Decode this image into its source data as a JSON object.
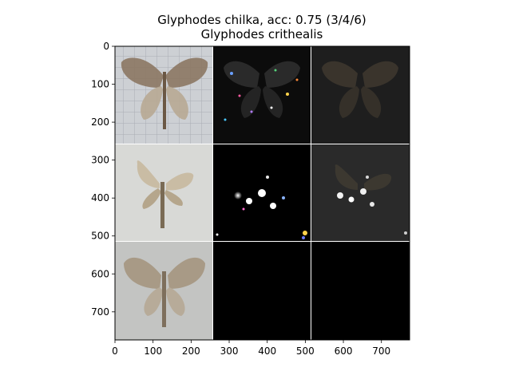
{
  "chart_data": {
    "type": "image-grid",
    "title": "Glyphodes chilka, acc: 0.75 (3/4/6)",
    "subtitle": "Glyphodes crithealis",
    "xlim": [
      0,
      774
    ],
    "ylim": [
      774,
      0
    ],
    "x_ticks": [
      0,
      100,
      200,
      300,
      400,
      500,
      600,
      700
    ],
    "y_ticks": [
      0,
      100,
      200,
      300,
      400,
      500,
      600,
      700
    ],
    "tile_size": 256,
    "grid": {
      "rows": 3,
      "cols": 3
    },
    "tiles": [
      {
        "row": 0,
        "col": 0,
        "content": "moth photo on grid paper"
      },
      {
        "row": 0,
        "col": 1,
        "content": "attribution map, dark with colored speckles"
      },
      {
        "row": 0,
        "col": 2,
        "content": "masked moth, dark"
      },
      {
        "row": 1,
        "col": 0,
        "content": "moth photo, light background"
      },
      {
        "row": 1,
        "col": 1,
        "content": "attribution map, black with bright spots"
      },
      {
        "row": 1,
        "col": 2,
        "content": "masked moth with bright spots"
      },
      {
        "row": 2,
        "col": 0,
        "content": "moth photo, grey background"
      },
      {
        "row": 2,
        "col": 1,
        "content": "black"
      },
      {
        "row": 2,
        "col": 2,
        "content": "black"
      }
    ]
  }
}
